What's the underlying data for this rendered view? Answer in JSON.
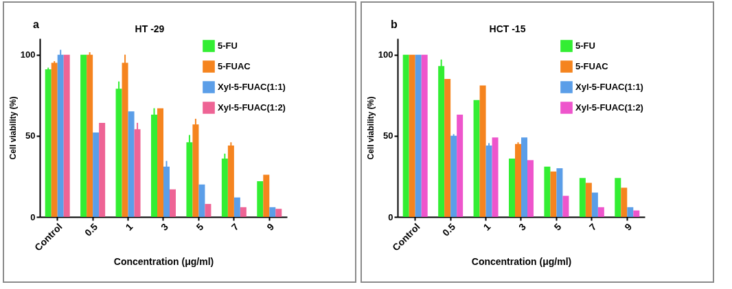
{
  "chart_data": [
    {
      "type": "bar",
      "title": "HT -29",
      "xlabel": "Concentration (μg/ml)",
      "ylabel": "Cell viability (%)",
      "annotations": [
        "a"
      ],
      "categories": [
        "Control",
        "0.5",
        "1",
        "3",
        "5",
        "7",
        "9"
      ],
      "series": [
        {
          "name": "5-FU",
          "color": "#33ee33",
          "values": [
            91,
            100,
            79,
            63,
            46,
            36,
            22
          ],
          "errors": [
            1,
            null,
            4.5,
            4,
            4.5,
            3,
            null
          ]
        },
        {
          "name": "5-FUAC",
          "color": "#f5841f",
          "values": [
            95,
            100,
            95,
            67,
            57,
            44,
            26
          ],
          "errors": [
            1,
            1.5,
            5,
            null,
            3.5,
            2,
            null
          ]
        },
        {
          "name": "Xyl-5-FUAC(1:1)",
          "color": "#5b9ee8",
          "values": [
            100,
            52,
            65,
            31,
            20,
            12,
            6
          ],
          "errors": [
            3,
            null,
            null,
            3.5,
            null,
            null,
            null
          ]
        },
        {
          "name": "Xyl-5-FUAC(1:2)",
          "color": "#ee6495",
          "values": [
            100,
            58,
            54,
            17,
            8,
            6,
            5
          ],
          "errors": [
            null,
            null,
            4,
            null,
            null,
            null,
            null
          ]
        }
      ],
      "ylim": [
        0,
        110
      ],
      "yticks": [
        0,
        50,
        100
      ],
      "grid": false,
      "legend": "top right"
    },
    {
      "type": "bar",
      "title": "HCT -15",
      "xlabel": "Concentration (μg/ml)",
      "ylabel": "Cell viability (%)",
      "annotations": [
        "b"
      ],
      "categories": [
        "Control",
        "0.5",
        "1",
        "3",
        "5",
        "7",
        "9"
      ],
      "series": [
        {
          "name": "5-FU",
          "color": "#33ee33",
          "values": [
            100,
            93,
            72,
            36,
            31,
            24,
            24
          ],
          "errors": [
            null,
            4,
            null,
            null,
            null,
            null,
            null
          ]
        },
        {
          "name": "5-FUAC",
          "color": "#f5841f",
          "values": [
            100,
            85,
            81,
            45,
            28,
            21,
            18
          ],
          "errors": [
            null,
            null,
            null,
            1,
            null,
            null,
            null
          ]
        },
        {
          "name": "Xyl-5-FUAC(1:1)",
          "color": "#5b9ee8",
          "values": [
            100,
            50,
            44,
            49,
            30,
            15,
            6
          ],
          "errors": [
            null,
            1,
            1.5,
            null,
            null,
            null,
            null
          ]
        },
        {
          "name": "Xyl-5-FUAC(1:2)",
          "color": "#ee55cc",
          "values": [
            100,
            63,
            49,
            35,
            13,
            6,
            4
          ],
          "errors": [
            null,
            null,
            null,
            null,
            null,
            null,
            null
          ]
        }
      ],
      "ylim": [
        0,
        110
      ],
      "yticks": [
        0,
        50,
        100
      ],
      "grid": false,
      "legend": "top right"
    }
  ]
}
